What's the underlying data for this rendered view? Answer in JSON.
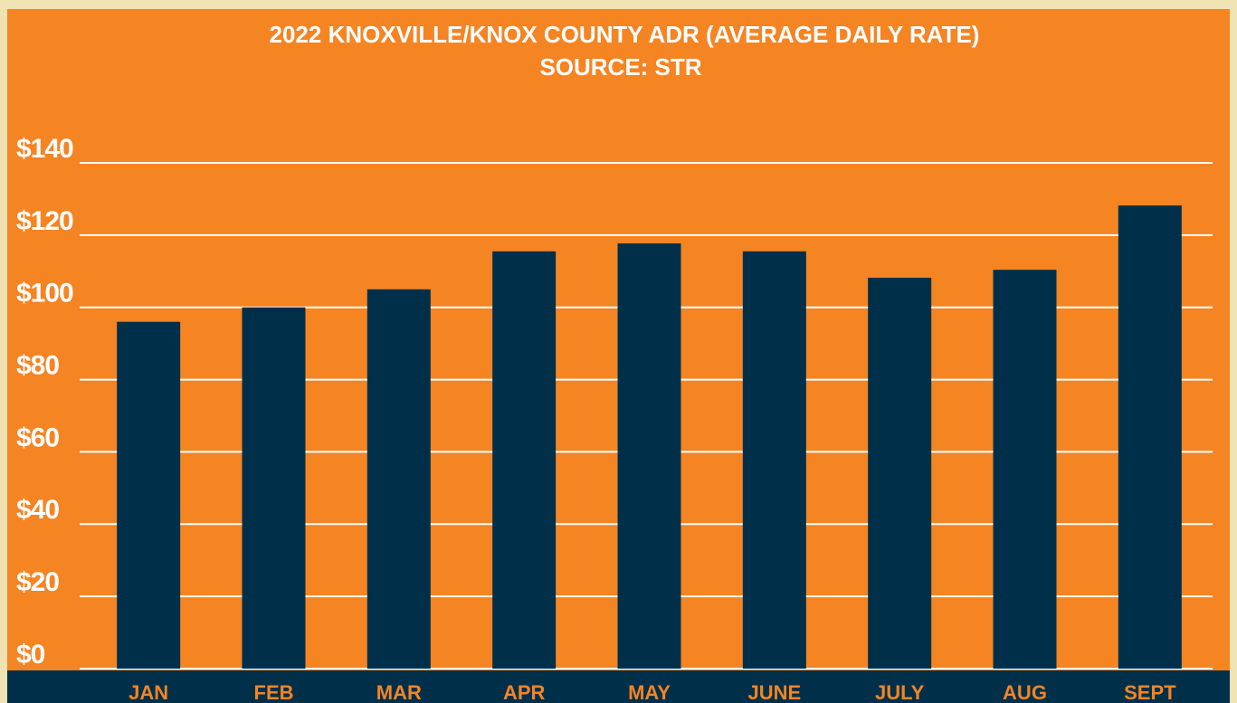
{
  "chart_data": {
    "type": "bar",
    "title": "2022 KNOXVILLE/KNOX COUNTY ADR (AVERAGE DAILY RATE)",
    "subtitle": "SOURCE: STR",
    "categories": [
      "JAN",
      "FEB",
      "MAR",
      "APR",
      "MAY",
      "JUNE",
      "JULY",
      "AUG",
      "SEPT"
    ],
    "values": [
      96,
      100,
      105,
      115.5,
      117.7,
      115.5,
      108.2,
      110.4,
      128.2
    ],
    "color": "#003049",
    "ylim": [
      0,
      140
    ],
    "yticks": [
      {
        "value": 0,
        "label": "$0"
      },
      {
        "value": 20,
        "label": "$20"
      },
      {
        "value": 40,
        "label": "$40"
      },
      {
        "value": 60,
        "label": "$60"
      },
      {
        "value": 80,
        "label": "$80"
      },
      {
        "value": 100,
        "label": "$100"
      },
      {
        "value": 120,
        "label": "$120"
      },
      {
        "value": 140,
        "label": "$140"
      }
    ],
    "grid": true
  }
}
